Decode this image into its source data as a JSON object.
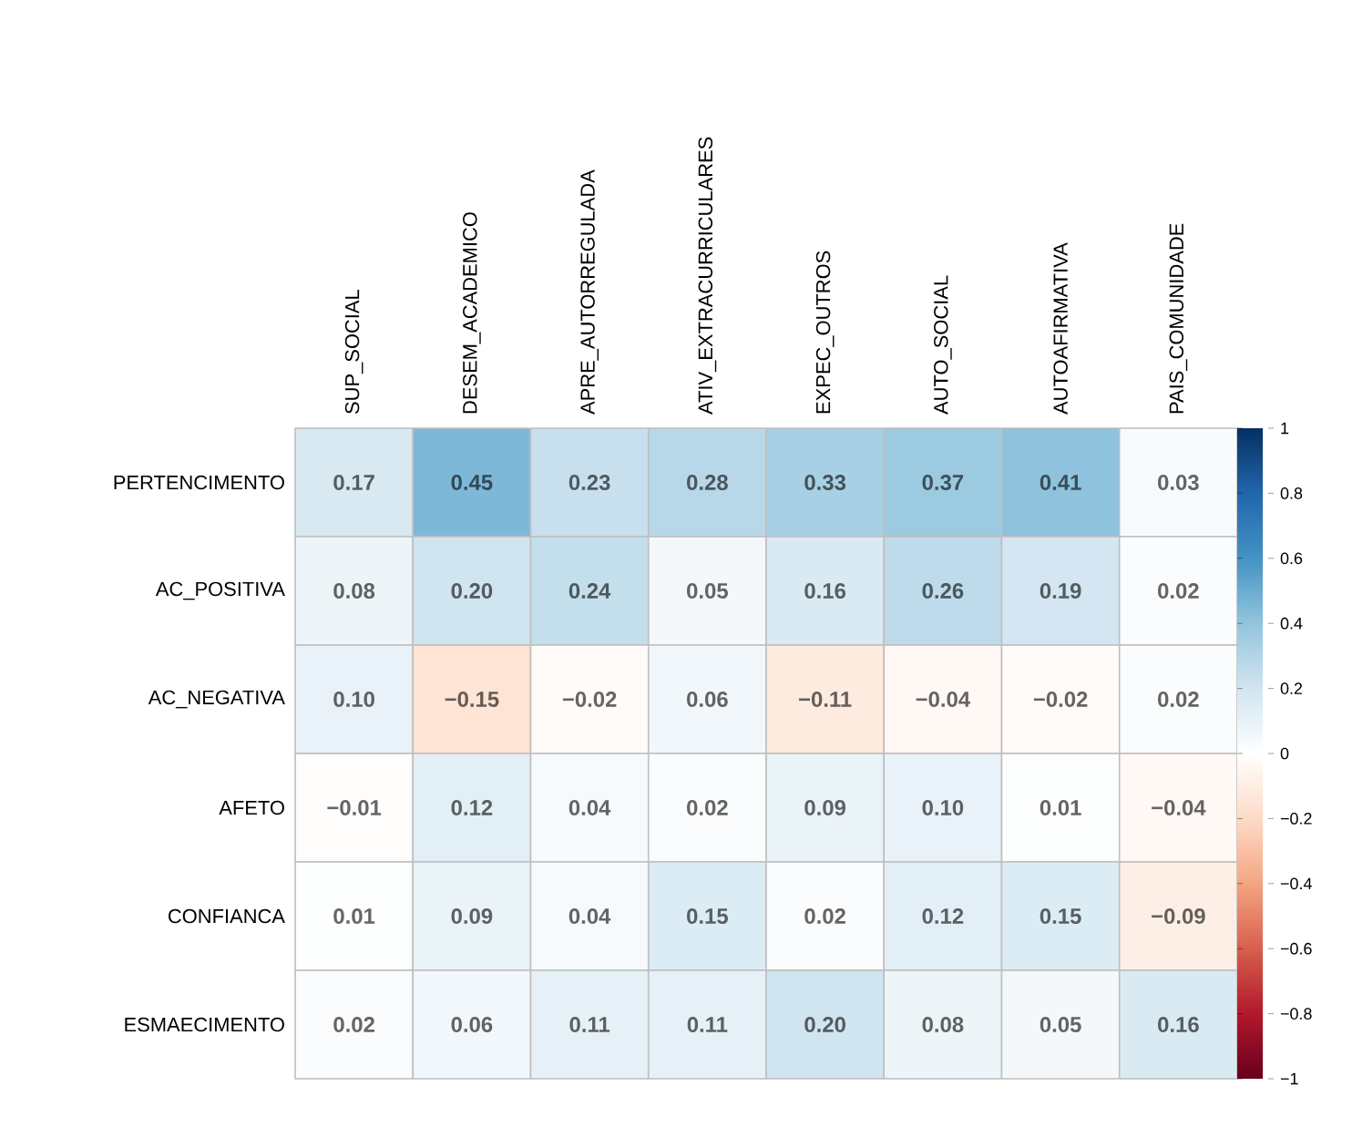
{
  "chart_data": {
    "type": "heatmap",
    "categories": [
      "SUP_SOCIAL",
      "DESEM_ACADEMICO",
      "APRE_AUTORREGULADA",
      "ATIV_EXTRACURRICULARES",
      "EXPEC_OUTROS",
      "AUTO_SOCIAL",
      "AUTOAFIRMATIVA",
      "PAIS_COMUNIDADE"
    ],
    "y_categories": [
      "PERTENCIMENTO",
      "AC_POSITIVA",
      "AC_NEGATIVA",
      "AFETO",
      "CONFIANCA",
      "ESMAECIMENTO"
    ],
    "cells": [
      [
        0.17,
        0.45,
        0.23,
        0.28,
        0.33,
        0.37,
        0.41,
        0.03
      ],
      [
        0.08,
        0.2,
        0.24,
        0.05,
        0.16,
        0.26,
        0.19,
        0.02
      ],
      [
        0.1,
        -0.15,
        -0.02,
        0.06,
        -0.11,
        -0.04,
        -0.02,
        0.02
      ],
      [
        -0.01,
        0.12,
        0.04,
        0.02,
        0.09,
        0.1,
        0.01,
        -0.04
      ],
      [
        0.01,
        0.09,
        0.04,
        0.15,
        0.02,
        0.12,
        0.15,
        -0.09
      ],
      [
        0.02,
        0.06,
        0.11,
        0.11,
        0.2,
        0.08,
        0.05,
        0.16
      ]
    ],
    "cell_labels": [
      [
        "0.17",
        "0.45",
        "0.23",
        "0.28",
        "0.33",
        "0.37",
        "0.41",
        "0.03"
      ],
      [
        "0.08",
        "0.20",
        "0.24",
        "0.05",
        "0.16",
        "0.26",
        "0.19",
        "0.02"
      ],
      [
        "0.10",
        "−0.15",
        "−0.02",
        "0.06",
        "−0.11",
        "−0.04",
        "−0.02",
        "0.02"
      ],
      [
        "−0.01",
        "0.12",
        "0.04",
        "0.02",
        "0.09",
        "0.10",
        "0.01",
        "−0.04"
      ],
      [
        "0.01",
        "0.09",
        "0.04",
        "0.15",
        "0.02",
        "0.12",
        "0.15",
        "−0.09"
      ],
      [
        "0.02",
        "0.06",
        "0.11",
        "0.11",
        "0.20",
        "0.08",
        "0.05",
        "0.16"
      ]
    ],
    "clim": [
      -1,
      1
    ],
    "cticks": [
      {
        "value": -1,
        "label": "−1"
      },
      {
        "value": -0.8,
        "label": "−0.8"
      },
      {
        "value": -0.6,
        "label": "−0.6"
      },
      {
        "value": -0.4,
        "label": "−0.4"
      },
      {
        "value": -0.2,
        "label": "−0.2"
      },
      0,
      0.2,
      0.4,
      0.6,
      0.8,
      1
    ]
  }
}
